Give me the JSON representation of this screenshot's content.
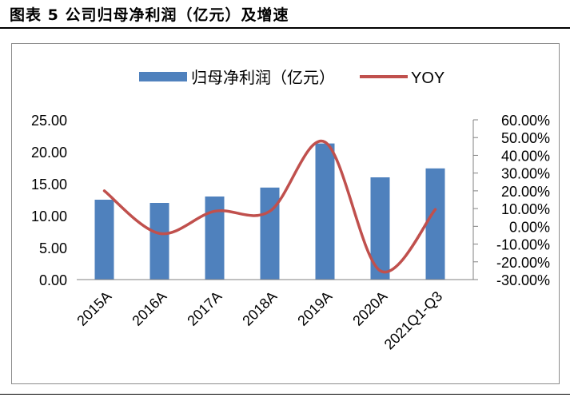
{
  "figure": {
    "title": "图表 5 公司归母净利润（亿元）及增速"
  },
  "chart_data": {
    "type": "bar",
    "categories": [
      "2015A",
      "2016A",
      "2017A",
      "2018A",
      "2019A",
      "2020A",
      "2021Q1-Q3"
    ],
    "series": [
      {
        "name": "归母净利润（亿元）",
        "type": "bar",
        "axis": "left",
        "color": "#4f81bd",
        "values": [
          12.5,
          12.0,
          13.0,
          14.4,
          21.3,
          16.0,
          17.4
        ]
      },
      {
        "name": "YOY",
        "type": "line",
        "smooth": true,
        "axis": "right",
        "color": "#c0504d",
        "values": [
          20.0,
          -4.0,
          8.5,
          8.5,
          47.5,
          -25.0,
          9.5
        ]
      }
    ],
    "y_left": {
      "min": 0,
      "max": 25,
      "step": 5,
      "tick_labels": [
        "0.00",
        "5.00",
        "10.00",
        "15.00",
        "20.00",
        "25.00"
      ]
    },
    "y_right": {
      "min": -30,
      "max": 60,
      "step": 10,
      "tick_labels": [
        "-30.00%",
        "-20.00%",
        "-10.00%",
        "0.00%",
        "10.00%",
        "20.00%",
        "30.00%",
        "40.00%",
        "50.00%",
        "60.00%"
      ]
    },
    "legend": {
      "position": "top",
      "items": [
        {
          "label": "归母净利润（亿元）",
          "symbol": "bar"
        },
        {
          "label": "YOY",
          "symbol": "line"
        }
      ]
    },
    "grid": false
  }
}
